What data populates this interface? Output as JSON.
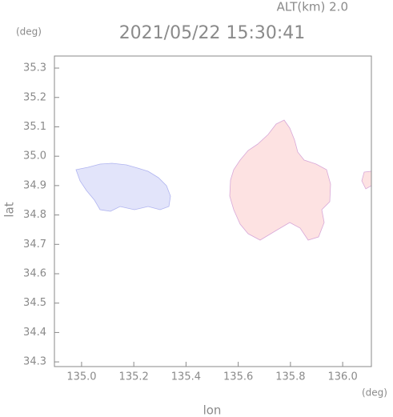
{
  "chart_data": {
    "type": "map",
    "header": "ALT(km) 2.0",
    "title": "2021/05/22 15:30:41",
    "y_unit": "(deg)",
    "x_unit": "(deg)",
    "ylabel": "lat",
    "xlabel": "lon",
    "xlim": [
      134.896,
      136.11
    ],
    "ylim": [
      34.284,
      35.341
    ],
    "xticks": [
      {
        "value": 135.0,
        "label": "135.0"
      },
      135.2,
      135.4,
      135.6,
      135.8,
      {
        "value": 136.0,
        "label": "136.0"
      }
    ],
    "yticks": [
      35.3,
      35.2,
      35.1,
      {
        "value": 35.0,
        "label": "35.0"
      },
      34.9,
      34.8,
      34.7,
      34.6,
      34.5,
      34.4,
      34.3
    ]
  }
}
